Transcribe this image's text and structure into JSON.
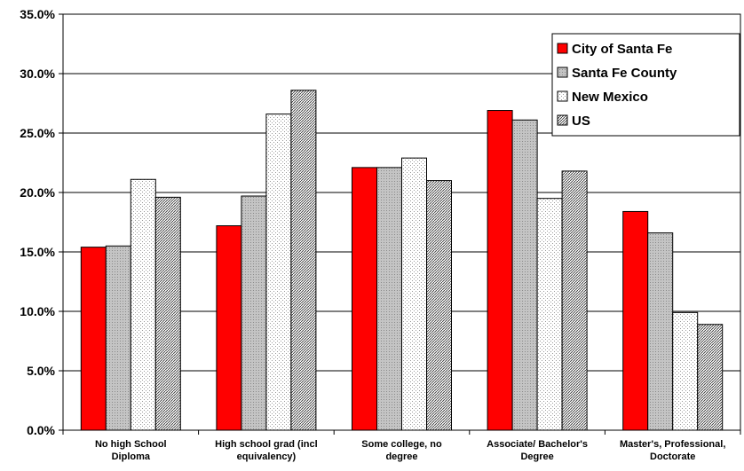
{
  "chart_data": {
    "type": "bar",
    "categories": [
      [
        "No high School",
        "Diploma"
      ],
      [
        "High school grad (incl",
        "equivalency)"
      ],
      [
        "Some college, no",
        "degree"
      ],
      [
        "Associate/ Bachelor's",
        "Degree"
      ],
      [
        "Master's, Professional,",
        "Doctorate"
      ]
    ],
    "series": [
      {
        "name": "City of Santa Fe",
        "values": [
          15.4,
          17.2,
          22.1,
          26.9,
          18.4
        ],
        "fill": "red"
      },
      {
        "name": "Santa Fe County",
        "values": [
          15.5,
          19.7,
          22.1,
          26.1,
          16.6
        ],
        "fill": "gray"
      },
      {
        "name": "New Mexico",
        "values": [
          21.1,
          26.6,
          22.9,
          19.5,
          9.9
        ],
        "fill": "dots"
      },
      {
        "name": "US",
        "values": [
          19.6,
          28.6,
          21.0,
          21.8,
          8.9
        ],
        "fill": "hatch"
      }
    ],
    "yticks": [
      "0.0%",
      "5.0%",
      "10.0%",
      "15.0%",
      "20.0%",
      "25.0%",
      "30.0%",
      "35.0%"
    ],
    "ylim": [
      0,
      35
    ],
    "grid": true,
    "legend_position": "top-right",
    "colors": {
      "red": "#ff0000",
      "gray": "#c0c0c0",
      "axis": "#000000",
      "grid": "#000000"
    }
  }
}
